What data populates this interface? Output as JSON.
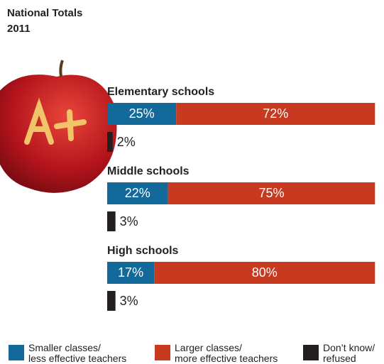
{
  "chart_data": {
    "type": "bar",
    "stacked": true,
    "title": "National Totals",
    "subtitle": "2011",
    "categories": [
      "Elementary schools",
      "Middle schools",
      "High schools"
    ],
    "xlim": [
      0,
      100
    ],
    "series": [
      {
        "name": "Smaller classes/ less effective teachers",
        "color": "#12699a",
        "values": [
          25,
          22,
          17
        ],
        "value_labels": [
          "25%",
          "22%",
          "17%"
        ]
      },
      {
        "name": "Larger classes/ more effective teachers",
        "color": "#c73a20",
        "values": [
          72,
          75,
          80
        ],
        "value_labels": [
          "72%",
          "75%",
          "80%"
        ]
      },
      {
        "name": "Don’t know/ refused",
        "color": "#231f20",
        "values": [
          2,
          3,
          3
        ],
        "value_labels": [
          "2%",
          "3%",
          "3%"
        ],
        "separate": true
      }
    ]
  }
}
